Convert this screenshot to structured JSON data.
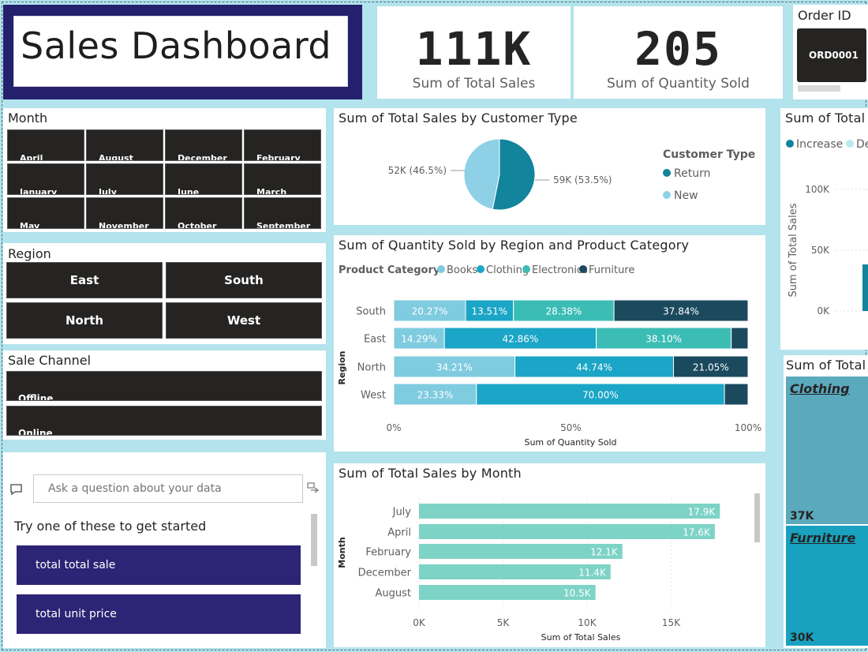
{
  "title": "Sales Dashboard",
  "kpis": [
    {
      "value": "111K",
      "label": "Sum of Total Sales"
    },
    {
      "value": "205",
      "label": "Sum of Quantity Sold"
    }
  ],
  "order_slicer": {
    "title": "Order ID",
    "selected": "ORD0001"
  },
  "month_slicer": {
    "title": "Month",
    "items": [
      "April",
      "August",
      "December",
      "February",
      "January",
      "July",
      "June",
      "March",
      "May",
      "November",
      "October",
      "September"
    ]
  },
  "region_slicer": {
    "title": "Region",
    "items": [
      "East",
      "South",
      "North",
      "West"
    ]
  },
  "channel_slicer": {
    "title": "Sale Channel",
    "items": [
      "Offline",
      "Online"
    ]
  },
  "qna": {
    "placeholder": "Ask a question about your data",
    "prompt": "Try one of these to get started",
    "suggestions": [
      "total total sale",
      "total unit price"
    ]
  },
  "colors": {
    "dark_navy": "#24206e",
    "tile": "#252423",
    "return": "#12849c",
    "new": "#8ed1e6",
    "books": "#7fcbdf",
    "clothing": "#1ba5c6",
    "electronics": "#3bbdb5",
    "furniture": "#1b4a5e",
    "month_bar": "#7dd3c6"
  },
  "chart_data": [
    {
      "type": "pie",
      "title": "Sum of Total Sales by Customer Type",
      "legend_title": "Customer Type",
      "legend_position": "right",
      "slices": [
        {
          "name": "Return",
          "value": 59,
          "label": "59K (53.5%)",
          "color": "#12849c"
        },
        {
          "name": "New",
          "value": 52,
          "label": "52K (46.5%)",
          "color": "#8ed1e6"
        }
      ]
    },
    {
      "type": "bar",
      "orientation": "horizontal",
      "stacked": "100%",
      "title": "Sum of Quantity Sold by Region and Product Category",
      "legend_title": "Product Category",
      "legend_position": "top-left",
      "categories": [
        "South",
        "East",
        "North",
        "West"
      ],
      "xlabel": "Sum of Quantity Sold",
      "ylabel": "Region",
      "xticks": [
        "0%",
        "50%",
        "100%"
      ],
      "series": [
        {
          "name": "Books",
          "color": "#7fcbdf",
          "values": [
            20.27,
            14.29,
            34.21,
            23.33
          ],
          "labels": [
            "20.27%",
            "14.29%",
            "34.21%",
            "23.33%"
          ]
        },
        {
          "name": "Clothing",
          "color": "#1ba5c6",
          "values": [
            13.51,
            42.86,
            44.74,
            70.0
          ],
          "labels": [
            "13.51%",
            "42.86%",
            "44.74%",
            "70.00%"
          ]
        },
        {
          "name": "Electronics",
          "color": "#3bbdb5",
          "values": [
            28.38,
            38.1,
            0,
            0
          ],
          "labels": [
            "28.38%",
            "38.10%",
            "",
            ""
          ]
        },
        {
          "name": "Furniture",
          "color": "#1b4a5e",
          "values": [
            37.84,
            4.75,
            21.05,
            6.67
          ],
          "labels": [
            "37.84%",
            "",
            "21.05%",
            ""
          ]
        }
      ]
    },
    {
      "type": "bar",
      "orientation": "horizontal",
      "title": "Sum of Total Sales by Month",
      "categories": [
        "July",
        "April",
        "February",
        "December",
        "August"
      ],
      "values": [
        17.9,
        17.6,
        12.1,
        11.4,
        10.5
      ],
      "value_labels": [
        "17.9K",
        "17.6K",
        "12.1K",
        "11.4K",
        "10.5K"
      ],
      "xlabel": "Sum of Total Sales",
      "ylabel": "Month",
      "xlim": [
        0,
        19
      ],
      "xticks": [
        "0K",
        "5K",
        "10K",
        "15K"
      ]
    },
    {
      "type": "bar",
      "title": "Sum of Total",
      "legend": [
        "Increase",
        "De"
      ],
      "ylabel": "Sum of Total Sales",
      "yticks": [
        "100K",
        "50K",
        "0K"
      ]
    },
    {
      "type": "treemap",
      "title": "Sum of Total",
      "items": [
        {
          "name": "Clothing",
          "value_label": "37K"
        },
        {
          "name": "Furniture",
          "value_label": "30K"
        }
      ]
    }
  ]
}
